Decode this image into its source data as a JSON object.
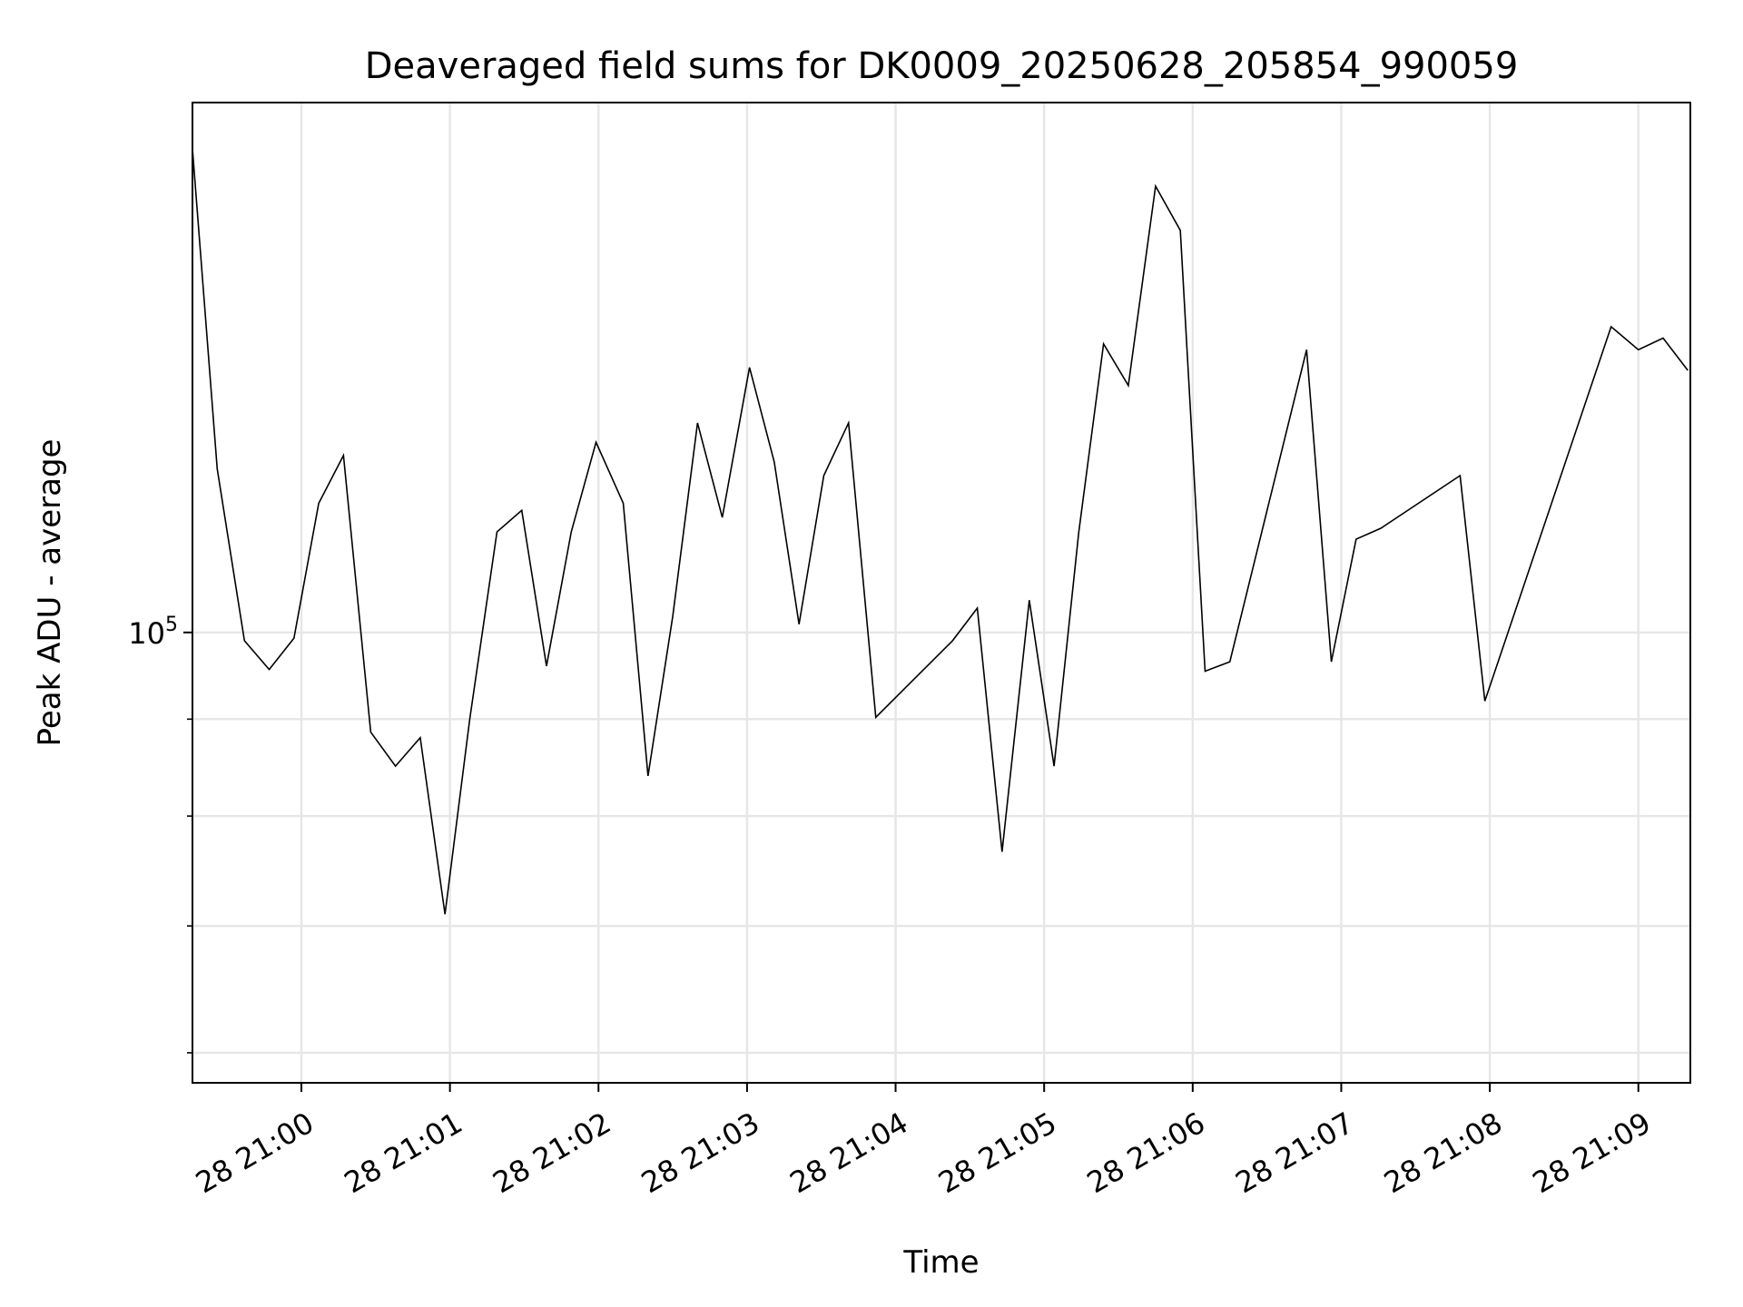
{
  "chart_data": {
    "type": "line",
    "title": "Deaveraged field sums for DK0009_20250628_205854_990059",
    "xlabel": "Time",
    "ylabel": "Peak ADU - average",
    "y_scale": "log",
    "grid": true,
    "grid_minor": true,
    "line_color": "#000000",
    "grid_color": "#e6e6e6",
    "xlim": [
      "2025-06-28T20:59:16",
      "2025-06-28T21:09:21"
    ],
    "ylim": [
      57850,
      190400
    ],
    "x_ticks": [
      {
        "value": "2025-06-28T21:00:00",
        "label": "28 21:00"
      },
      {
        "value": "2025-06-28T21:01:00",
        "label": "28 21:01"
      },
      {
        "value": "2025-06-28T21:02:00",
        "label": "28 21:02"
      },
      {
        "value": "2025-06-28T21:03:00",
        "label": "28 21:03"
      },
      {
        "value": "2025-06-28T21:04:00",
        "label": "28 21:04"
      },
      {
        "value": "2025-06-28T21:05:00",
        "label": "28 21:05"
      },
      {
        "value": "2025-06-28T21:06:00",
        "label": "28 21:06"
      },
      {
        "value": "2025-06-28T21:07:00",
        "label": "28 21:07"
      },
      {
        "value": "2025-06-28T21:08:00",
        "label": "28 21:08"
      },
      {
        "value": "2025-06-28T21:09:00",
        "label": "28 21:09"
      }
    ],
    "y_major_ticks": [
      {
        "value": 100000,
        "label_base": "10",
        "label_exp": "5"
      }
    ],
    "y_minor_ticks": [
      60000,
      70000,
      80000,
      90000,
      200000
    ],
    "series": [
      {
        "x": [
          "2025-06-28T20:59:16",
          "2025-06-28T20:59:26",
          "2025-06-28T20:59:37",
          "2025-06-28T20:59:47",
          "2025-06-28T20:59:57",
          "2025-06-28T21:00:07",
          "2025-06-28T21:00:17",
          "2025-06-28T21:00:28",
          "2025-06-28T21:00:38",
          "2025-06-28T21:00:48",
          "2025-06-28T21:00:58",
          "2025-06-28T21:01:08",
          "2025-06-28T21:01:19",
          "2025-06-28T21:01:29",
          "2025-06-28T21:01:39",
          "2025-06-28T21:01:49",
          "2025-06-28T21:01:59",
          "2025-06-28T21:02:10",
          "2025-06-28T21:02:20",
          "2025-06-28T21:02:30",
          "2025-06-28T21:02:40",
          "2025-06-28T21:02:50",
          "2025-06-28T21:03:01",
          "2025-06-28T21:03:11",
          "2025-06-28T21:03:21",
          "2025-06-28T21:03:31",
          "2025-06-28T21:03:41",
          "2025-06-28T21:03:52",
          "2025-06-28T21:04:23",
          "2025-06-28T21:04:33",
          "2025-06-28T21:04:43",
          "2025-06-28T21:04:54",
          "2025-06-28T21:05:04",
          "2025-06-28T21:05:14",
          "2025-06-28T21:05:24",
          "2025-06-28T21:05:34",
          "2025-06-28T21:05:45",
          "2025-06-28T21:05:55",
          "2025-06-28T21:06:05",
          "2025-06-28T21:06:15",
          "2025-06-28T21:06:46",
          "2025-06-28T21:06:56",
          "2025-06-28T21:07:06",
          "2025-06-28T21:07:16",
          "2025-06-28T21:07:48",
          "2025-06-28T21:07:58",
          "2025-06-28T21:08:49",
          "2025-06-28T21:09:00",
          "2025-06-28T21:09:10",
          "2025-06-28T21:09:20"
        ],
        "values": [
          180000,
          122000,
          99000,
          95600,
          99300,
          117000,
          124000,
          88600,
          85000,
          88000,
          71000,
          90000,
          113000,
          116000,
          96000,
          113000,
          126000,
          117000,
          84000,
          102000,
          129000,
          115000,
          138000,
          123000,
          101000,
          121000,
          129000,
          90200,
          99000,
          103000,
          76600,
          104000,
          85000,
          113000,
          142000,
          135000,
          172000,
          163000,
          95400,
          96500,
          141000,
          96500,
          112000,
          113500,
          121000,
          92000,
          145000,
          141000,
          143000,
          137500
        ]
      }
    ]
  }
}
